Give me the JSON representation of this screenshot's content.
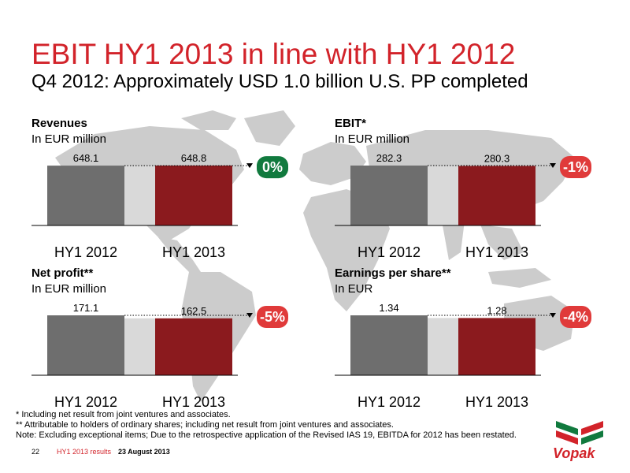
{
  "header": {
    "title": "EBIT HY1 2013 in line with HY1 2012",
    "subtitle": "Q4 2012: Approximately USD 1.0 billion U.S. PP completed"
  },
  "colors": {
    "accent_red": "#d2232a",
    "bar_2012": "#6e6e6e",
    "bar_2013": "#8b1a1e",
    "badge_green": "#117a3e",
    "badge_red": "#e03a3a",
    "map_gray": "#c9c9c9"
  },
  "chart_data": [
    {
      "type": "bar",
      "title": "Revenues",
      "unit": "In EUR million",
      "categories": [
        "HY1 2012",
        "HY1 2013"
      ],
      "values": [
        648.1,
        648.8
      ],
      "value_labels": [
        "648.1",
        "648.8"
      ],
      "change": "0%",
      "change_color": "green"
    },
    {
      "type": "bar",
      "title": "EBIT*",
      "unit": "In EUR million",
      "categories": [
        "HY1 2012",
        "HY1 2013"
      ],
      "values": [
        282.3,
        280.3
      ],
      "value_labels": [
        "282.3",
        "280.3"
      ],
      "change": "-1%",
      "change_color": "red"
    },
    {
      "type": "bar",
      "title": "Net profit**",
      "unit": "In EUR million",
      "categories": [
        "HY1 2012",
        "HY1 2013"
      ],
      "values": [
        171.1,
        162.5
      ],
      "value_labels": [
        "171.1",
        "162.5"
      ],
      "change": "-5%",
      "change_color": "red"
    },
    {
      "type": "bar",
      "title": "Earnings per share**",
      "unit": "In EUR",
      "categories": [
        "HY1 2012",
        "HY1 2013"
      ],
      "values": [
        1.34,
        1.28
      ],
      "value_labels": [
        "1.34",
        "1.28"
      ],
      "change": "-4%",
      "change_color": "red"
    }
  ],
  "footnotes": {
    "note1": "*   Including net result from joint ventures and associates.",
    "note2": "** Attributable to holders of ordinary shares; including net result from joint ventures and associates.",
    "note3": "Note: Excluding exceptional items; Due to the retrospective application of the Revised IAS 19, EBITDA for 2012 has been restated."
  },
  "footer": {
    "page": "22",
    "doc": "HY1 2013 results",
    "date": "23 August 2013",
    "logo": "Vopak"
  }
}
